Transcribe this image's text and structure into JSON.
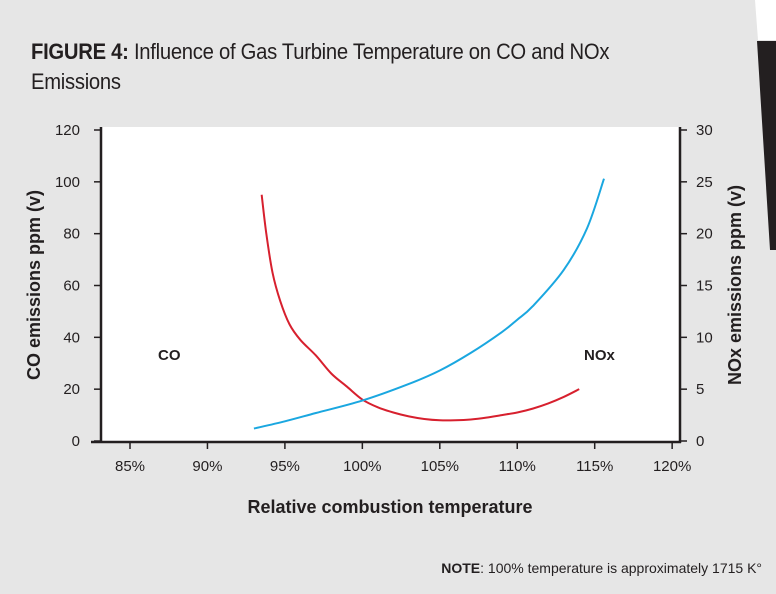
{
  "figure": {
    "title_prefix": "FIGURE 4:",
    "title_text": " Influence of Gas Turbine Temperature on CO and NOx Emissions",
    "note_label": "NOTE",
    "note_text": ": 100% temperature is approximately 1715 K°"
  },
  "chart_data": {
    "type": "line",
    "xlabel": "Relative combustion temperature",
    "ylabel": "CO emissions ppm (v)",
    "y2label": "NOx emissions ppm (v)",
    "xlim": [
      84,
      121
    ],
    "ylim": [
      0,
      120
    ],
    "y2lim": [
      0,
      30
    ],
    "x_ticks": [
      85,
      90,
      95,
      100,
      105,
      110,
      115,
      120
    ],
    "x_tick_labels": [
      "85%",
      "90%",
      "95%",
      "100%",
      "105%",
      "110%",
      "115%",
      "120%"
    ],
    "y_ticks": [
      0,
      20,
      40,
      60,
      80,
      100,
      120
    ],
    "y_tick_labels": [
      "0",
      "20",
      "40",
      "60",
      "80",
      "100",
      "120"
    ],
    "y2_ticks": [
      0,
      5,
      10,
      15,
      20,
      25,
      30
    ],
    "y2_tick_labels": [
      "0",
      "5",
      "10",
      "15",
      "20",
      "25",
      "30"
    ],
    "grid": false,
    "series": [
      {
        "name": "CO",
        "axis": "left",
        "color": "#d7202e",
        "x": [
          93.5,
          93.8,
          94.2,
          94.7,
          95.3,
          96,
          97,
          98,
          99,
          100,
          101,
          102,
          103,
          104,
          105,
          106,
          107,
          108,
          109,
          110,
          111,
          112,
          113,
          114
        ],
        "y": [
          95,
          80,
          65,
          54,
          45,
          39,
          33,
          26,
          21,
          16,
          13,
          11,
          9.5,
          8.5,
          8,
          8,
          8.3,
          9,
          10,
          11,
          12.5,
          14.5,
          17,
          20
        ]
      },
      {
        "name": "NOx",
        "axis": "right",
        "color": "#1aa7e0",
        "x": [
          93,
          95,
          97,
          100,
          103,
          105,
          107,
          109,
          110,
          111,
          113,
          114.5,
          115.6
        ],
        "y": [
          1.2,
          1.9,
          2.7,
          3.9,
          5.5,
          6.8,
          8.5,
          10.5,
          11.7,
          13,
          16.5,
          20.5,
          25.3
        ]
      }
    ],
    "annotations": [
      "CO",
      "NOx"
    ]
  }
}
